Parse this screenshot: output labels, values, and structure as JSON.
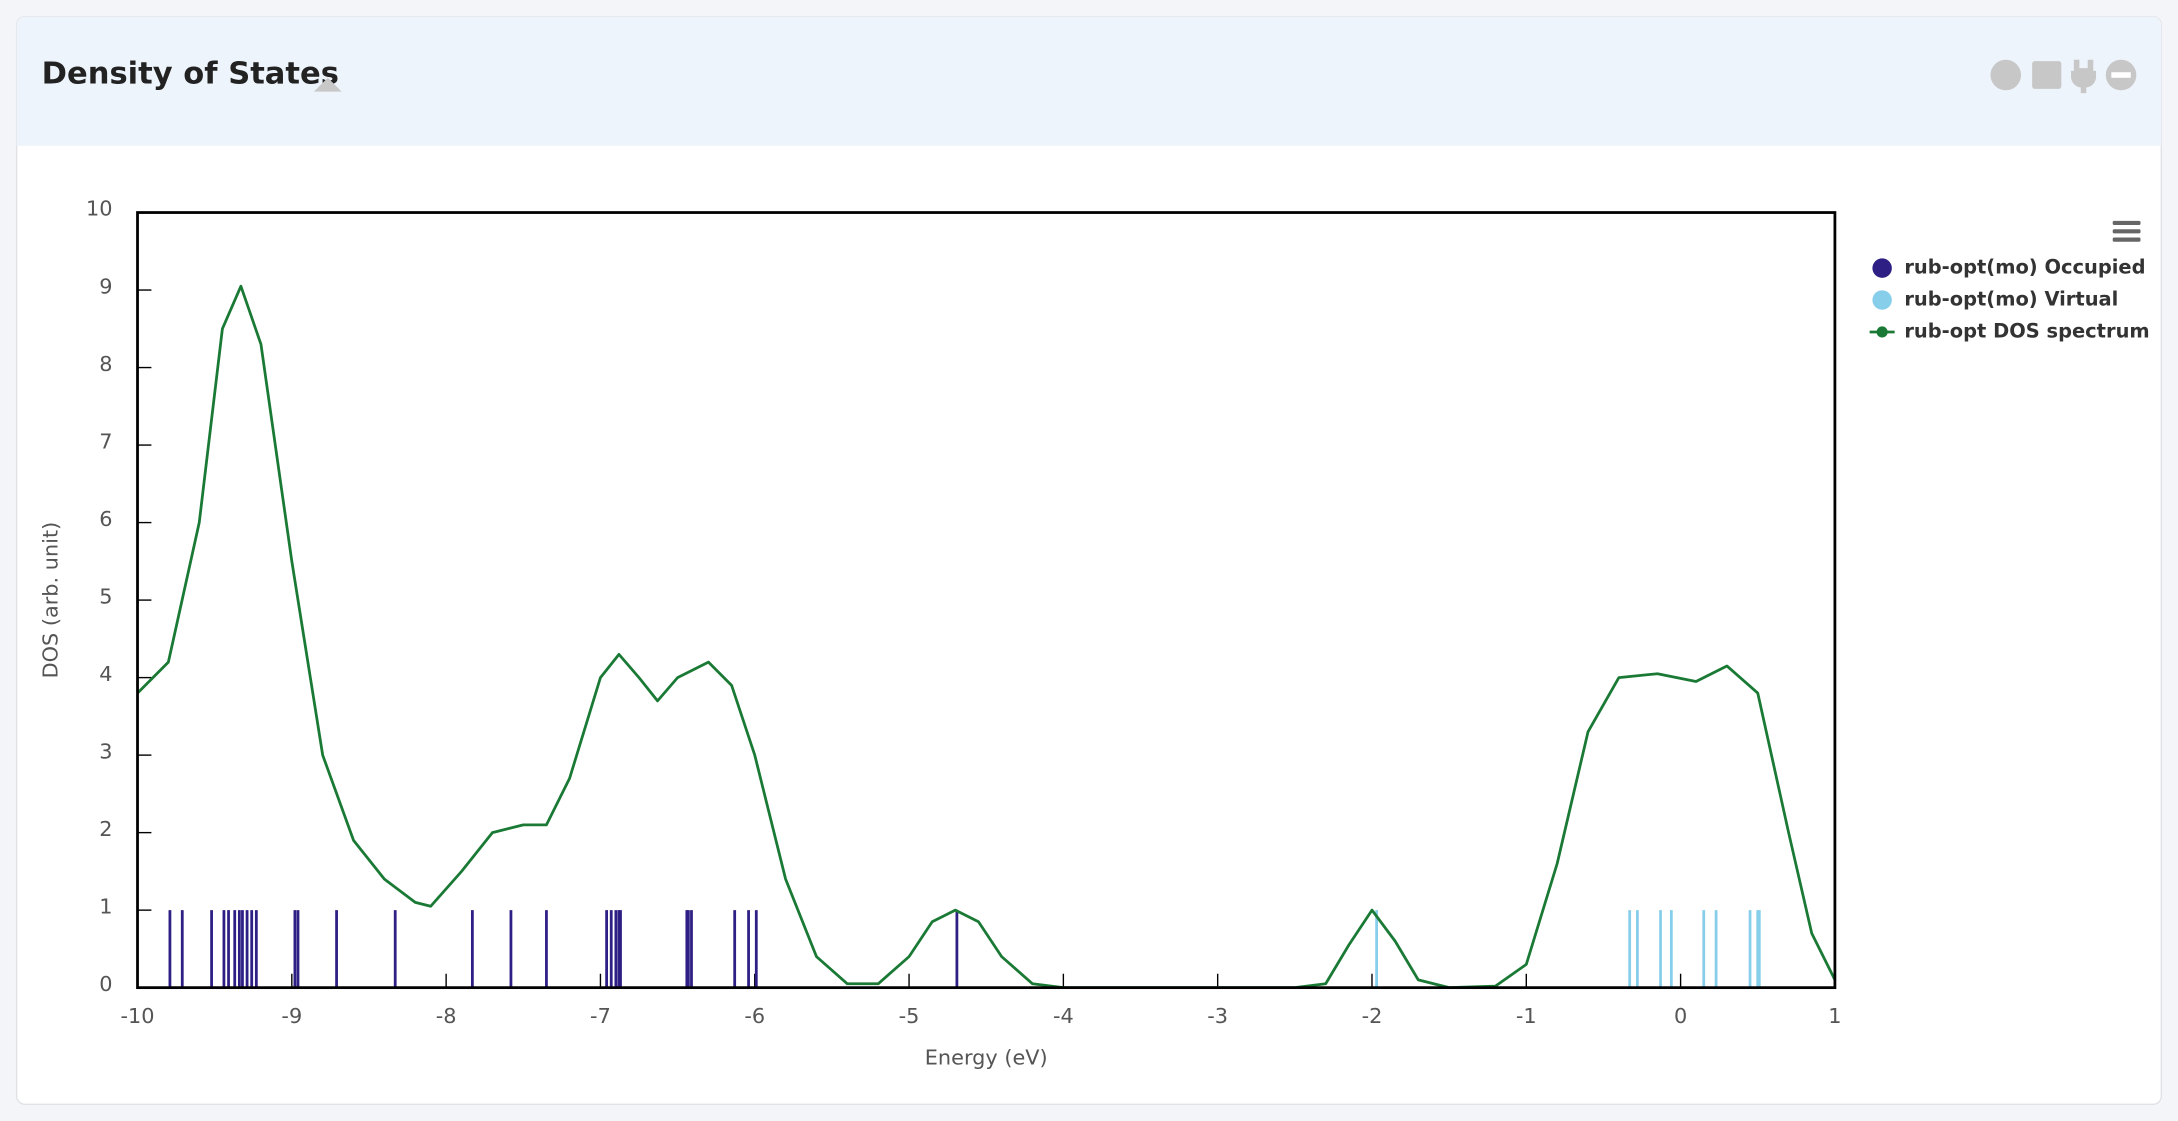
{
  "header": {
    "title": "Density of States"
  },
  "chart_data": {
    "type": "line",
    "x_label": "Energy (eV)",
    "y_label": "DOS (arb. unit)",
    "xlim": [
      -10,
      1
    ],
    "ylim": [
      0,
      10
    ],
    "xticks": [
      -10,
      -9,
      -8,
      -7,
      -6,
      -5,
      -4,
      -3,
      -2,
      -1,
      0,
      1
    ],
    "yticks": [
      0,
      1,
      2,
      3,
      4,
      5,
      6,
      7,
      8,
      9,
      10
    ],
    "legend": "right",
    "series": [
      {
        "name": "rub-opt(mo) Occupied",
        "type": "stick",
        "color": "#2e1f85",
        "x": [
          -9.79,
          -9.71,
          -9.52,
          -9.44,
          -9.41,
          -9.37,
          -9.34,
          -9.32,
          -9.29,
          -9.26,
          -9.23,
          -8.98,
          -8.96,
          -8.71,
          -8.33,
          -7.83,
          -7.58,
          -7.35,
          -6.96,
          -6.93,
          -6.9,
          -6.88,
          -6.87,
          -6.44,
          -6.43,
          -6.41,
          -6.13,
          -6.04,
          -5.99,
          -4.69
        ],
        "values": [
          1,
          1,
          1,
          1,
          1,
          1,
          1,
          1,
          1,
          1,
          1,
          1,
          1,
          1,
          1,
          1,
          1,
          1,
          1,
          1,
          1,
          1,
          1,
          1,
          1,
          1,
          1,
          1,
          1,
          1
        ]
      },
      {
        "name": "rub-opt(mo) Virtual",
        "type": "stick",
        "color": "#87ceeb",
        "x": [
          -1.97,
          -0.33,
          -0.28,
          -0.13,
          -0.06,
          0.15,
          0.23,
          0.45,
          0.5,
          0.51
        ],
        "values": [
          1,
          1,
          1,
          1,
          1,
          1,
          1,
          1,
          1,
          1
        ]
      },
      {
        "name": "rub-opt DOS spectrum",
        "type": "line",
        "color": "#1a7a35",
        "x": [
          -10,
          -9.8,
          -9.6,
          -9.45,
          -9.33,
          -9.2,
          -9.0,
          -8.8,
          -8.6,
          -8.4,
          -8.2,
          -8.1,
          -7.9,
          -7.7,
          -7.5,
          -7.35,
          -7.2,
          -7.0,
          -6.88,
          -6.75,
          -6.63,
          -6.5,
          -6.3,
          -6.15,
          -6.0,
          -5.8,
          -5.6,
          -5.4,
          -5.2,
          -5.0,
          -4.85,
          -4.7,
          -4.55,
          -4.4,
          -4.2,
          -4.0,
          -2.5,
          -2.3,
          -2.15,
          -2.0,
          -1.85,
          -1.7,
          -1.5,
          -1.2,
          -1.0,
          -0.8,
          -0.6,
          -0.4,
          -0.15,
          0.1,
          0.3,
          0.5,
          0.7,
          0.85,
          1.0
        ],
        "values": [
          3.8,
          4.2,
          6.0,
          8.5,
          9.05,
          8.3,
          5.5,
          3.0,
          1.9,
          1.4,
          1.1,
          1.05,
          1.5,
          2.0,
          2.1,
          2.1,
          2.7,
          4.0,
          4.3,
          4.0,
          3.7,
          4.0,
          4.2,
          3.9,
          3.0,
          1.4,
          0.4,
          0.05,
          0.05,
          0.4,
          0.85,
          1.0,
          0.85,
          0.4,
          0.05,
          0,
          0,
          0.05,
          0.55,
          1.0,
          0.6,
          0.1,
          0,
          0.02,
          0.3,
          1.6,
          3.3,
          4.0,
          4.05,
          3.95,
          4.15,
          3.8,
          2.0,
          0.7,
          0.1
        ]
      }
    ]
  }
}
